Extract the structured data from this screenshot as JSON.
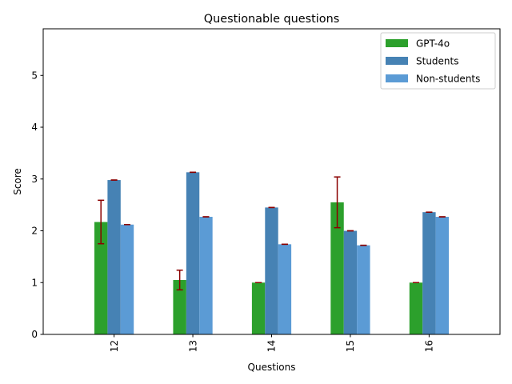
{
  "chart_data": {
    "type": "bar",
    "title": "Questionable questions",
    "xlabel": "Questions",
    "ylabel": "Score",
    "categories": [
      "12",
      "13",
      "14",
      "15",
      "16"
    ],
    "ylim": [
      0,
      5.9
    ],
    "yticks": [
      0,
      1,
      2,
      3,
      4,
      5
    ],
    "grid": false,
    "legend_position": "top-right",
    "error_bar_color": "#8b0000",
    "series": [
      {
        "name": "GPT-4o",
        "color": "#2ca02c",
        "values": [
          2.17,
          1.05,
          1.0,
          2.55,
          1.0
        ],
        "errors": [
          0.42,
          0.19,
          0.0,
          0.49,
          0.0
        ]
      },
      {
        "name": "Students",
        "color": "#4682b4",
        "values": [
          2.98,
          3.13,
          2.45,
          2.0,
          2.36
        ],
        "errors": [
          0,
          0,
          0,
          0,
          0
        ]
      },
      {
        "name": "Non-students",
        "color": "#5b9bd5",
        "values": [
          2.12,
          2.27,
          1.74,
          1.72,
          2.27
        ],
        "errors": [
          0,
          0,
          0,
          0,
          0
        ]
      }
    ]
  }
}
